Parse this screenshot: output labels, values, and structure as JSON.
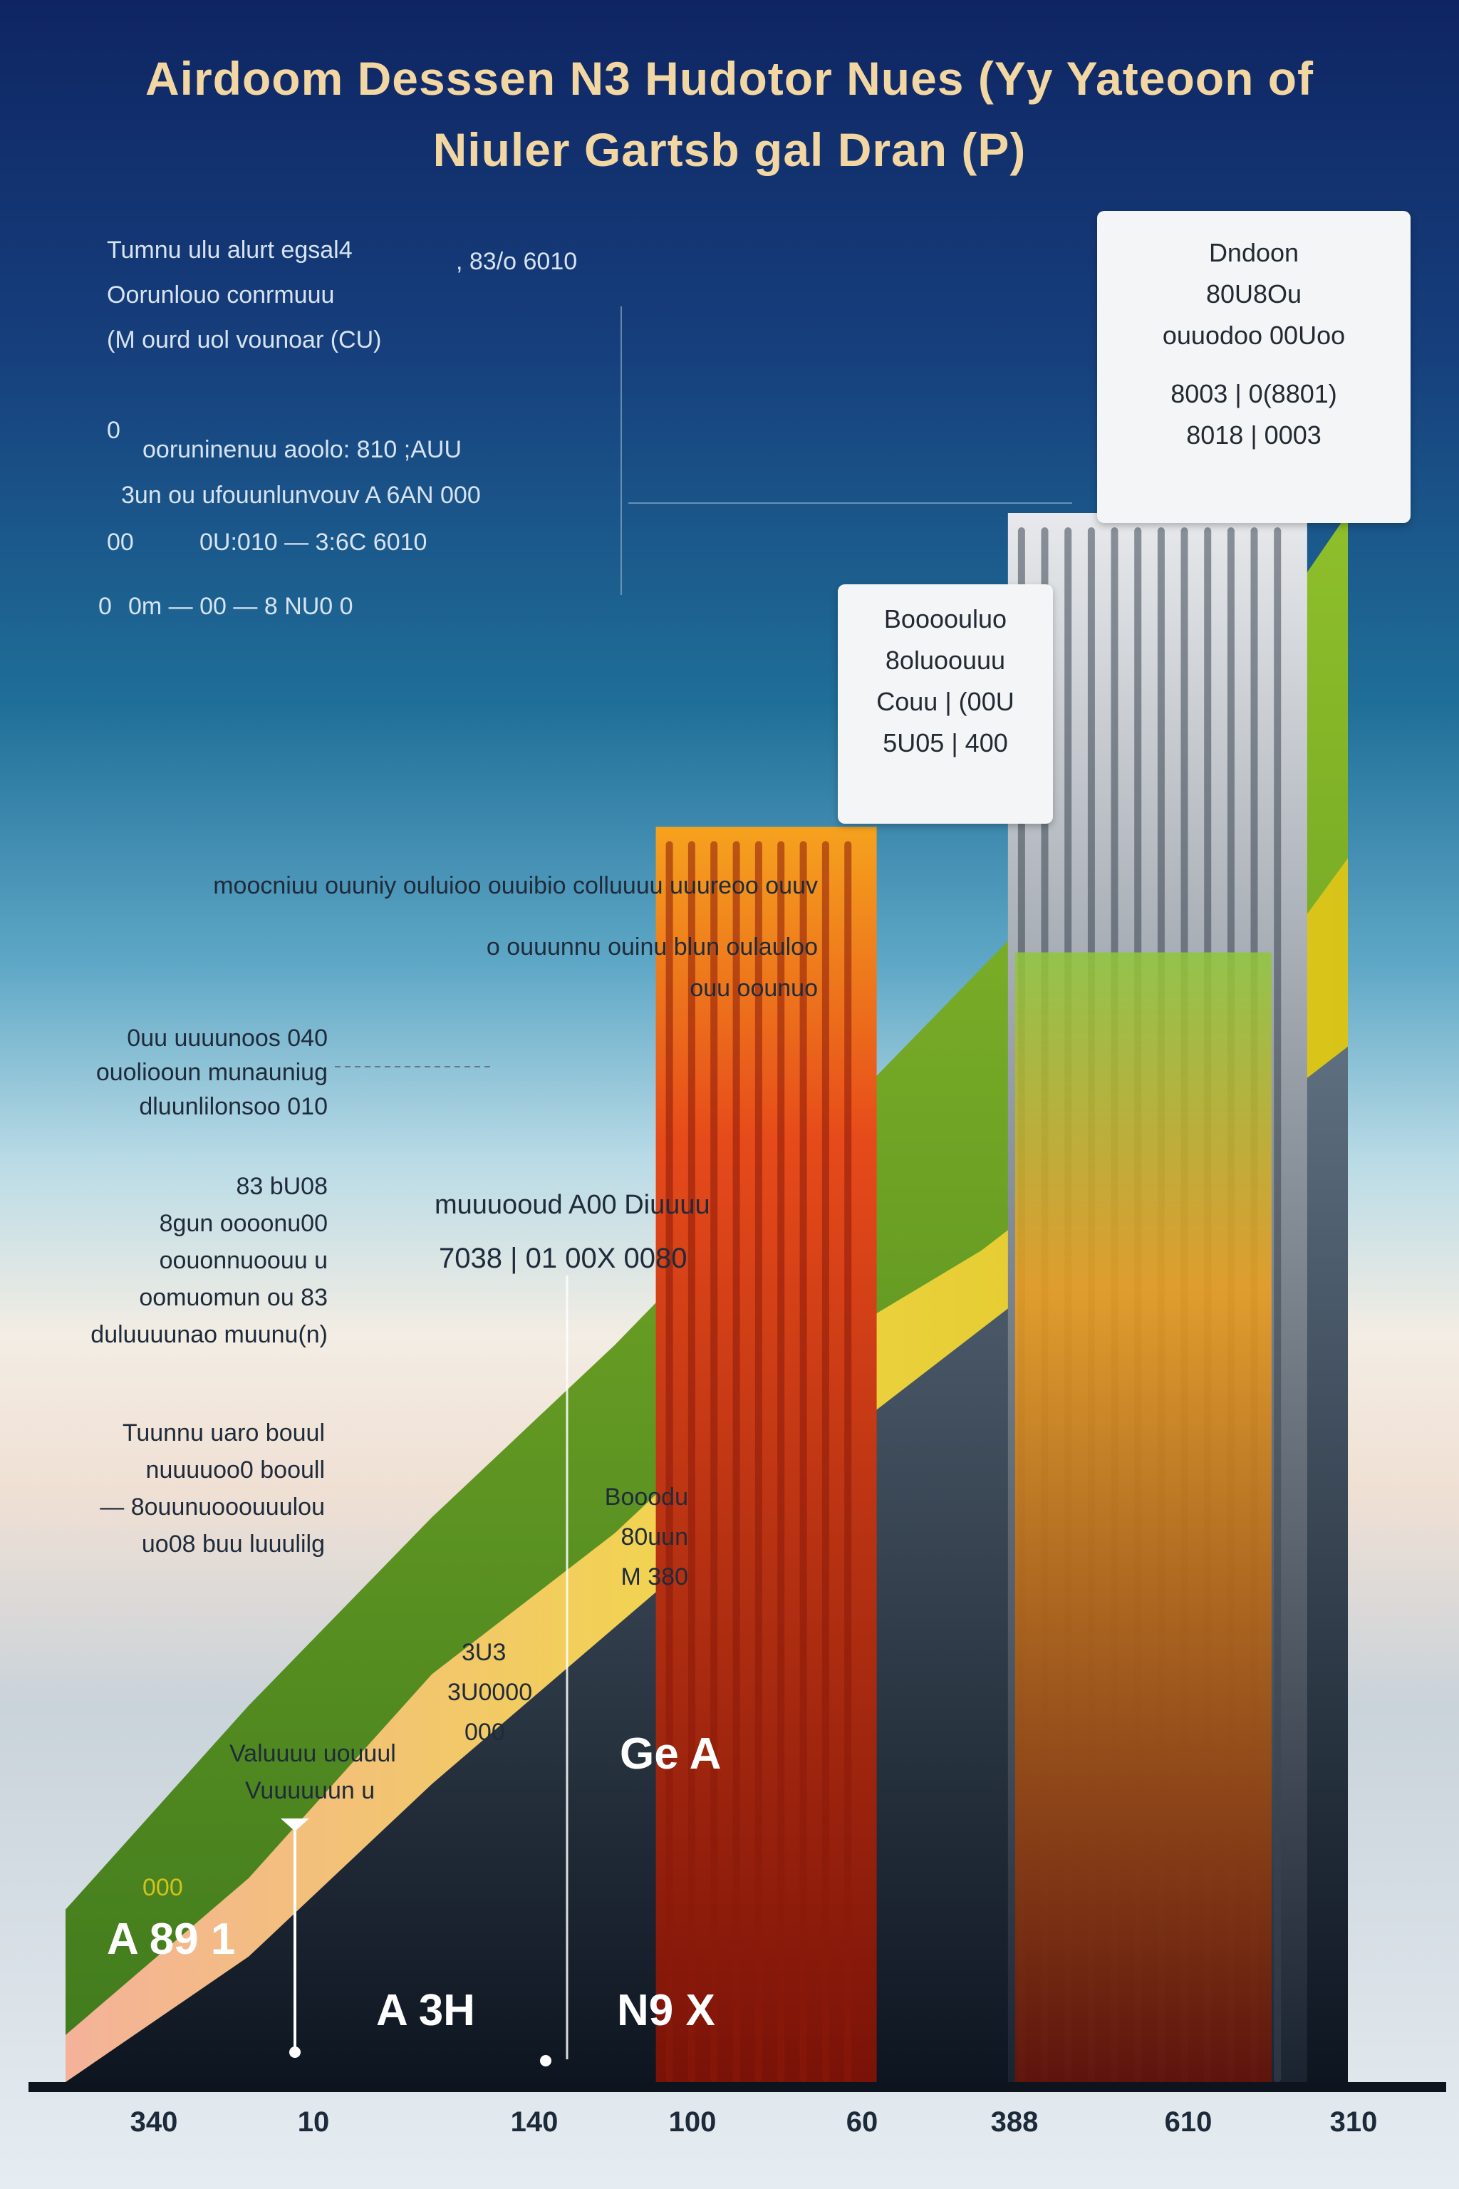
{
  "title_line_1": "Airdoom Desssen N3 Hudotor Nues (Yy Yateoon of",
  "title_line_2": "Niuler Gartsb gal Dran (P)",
  "colors": {
    "background_top": "#0f2563",
    "green_area": "#5d9a26",
    "yellow_area": "#e6c81d",
    "dark_wedge": "#1c2a3a",
    "red_bar": "#e0401c",
    "grey_bar": "#9aa2ab",
    "panel": "#f4f5f6"
  },
  "info_box": {
    "lines": [
      "Tumnu ulu alurt egsal4",
      "Oorunlouo conrmuuu",
      "(M ourd uol vounoar (CU)"
    ],
    "value": ", 83/o 6010",
    "rows": [
      {
        "label": "0",
        "text": "ooruninenuu aoolo: 810 ;AUU"
      },
      {
        "label": "",
        "text": "3un ou ufouunlunvouv A 6AN 000"
      },
      {
        "label": "00",
        "text": "0U:010 — 3:6C 6010"
      },
      {
        "label": "0",
        "text": "0m — 00 — 8 NU0 0"
      }
    ]
  },
  "annotations": {
    "long_line_1": "moocniuu ouuniy ouluioo ouuibio colluuuu uuureoo ouuv",
    "long_line_2": [
      "o ouuunnu ouinu blun oulauloo",
      "ouu oounuo"
    ],
    "side_block_1": [
      "0uu uuuunoos 040",
      "ouoliooun munauniug",
      "dluunlilonsoo 010"
    ],
    "side_block_2": [
      "83 bU08",
      "8gun oooonu00",
      "oouonnuoouu u",
      "oomuomun ou 83",
      "duluuuunao muunu(n)"
    ],
    "side_block_3": [
      "Tuunnu uaro bouul",
      "nuuuuoo0 booull",
      "— 8ouunuooouuulou",
      "uo08 buu luuulilg"
    ],
    "middle_label": [
      "muuuooud A00 Diuuuu",
      "7038 | 01 00X 0080"
    ],
    "area_small_1": [
      "Booodu",
      "80uun",
      "M 380"
    ],
    "area_small_2": [
      "3U3",
      "3U0000",
      "000"
    ],
    "area_small_3": [
      "Valuuuu uouuul",
      "Vuuuuuun u"
    ],
    "area_small_4": "000"
  },
  "panels": [
    {
      "lines": [
        "Boooouluo",
        "8oluoouuu",
        "Couu | (00U",
        "5U05 | 400"
      ]
    },
    {
      "lines": [
        "Dndoon",
        "80U8Ou",
        "ouuodoo 00Uoo",
        "8003 | 0(8801)",
        "8018 | 0003"
      ]
    }
  ],
  "big_labels": [
    "A 89 1",
    "A 3H",
    "N9 X",
    "Ge A"
  ],
  "chart_data": {
    "type": "bar",
    "title": "Airdoom Desssen N3 Hudotor Nues (Yy Yateoon of Niuler Gartsb gal Dran (P)",
    "xlabel": "",
    "ylabel": "",
    "categories": [
      "340",
      "10",
      "140",
      "100",
      "60",
      "388",
      "610",
      "310"
    ],
    "ylim": [
      0,
      100
    ],
    "series": [
      {
        "style": "area",
        "color": "#5d9a26",
        "values": [
          11,
          24,
          36,
          47,
          59,
          71,
          83,
          100
        ]
      },
      {
        "style": "area",
        "color": "#e6c81d",
        "values": [
          3,
          13,
          26,
          35,
          46,
          53,
          62,
          78
        ]
      },
      {
        "style": "area",
        "color": "#1c2a3a",
        "values": [
          0,
          8,
          19,
          29,
          39,
          48,
          57,
          66
        ]
      },
      {
        "style": "bars",
        "color": "#e0401c",
        "values": [
          0,
          0,
          0,
          0,
          80,
          0,
          0,
          0
        ]
      },
      {
        "style": "bars",
        "color": "#9aa2ab",
        "values": [
          0,
          0,
          0,
          0,
          0,
          0,
          100,
          0
        ]
      }
    ]
  }
}
